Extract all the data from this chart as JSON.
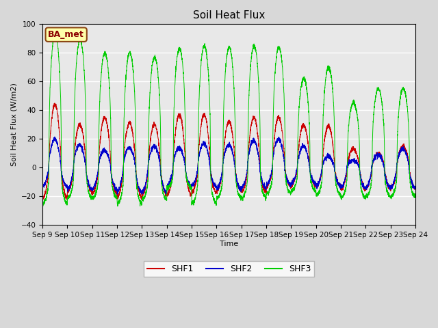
{
  "title": "Soil Heat Flux",
  "ylabel": "Soil Heat Flux (W/m2)",
  "xlabel": "Time",
  "station_label": "BA_met",
  "ylim": [
    -40,
    100
  ],
  "yticks": [
    -40,
    -20,
    0,
    20,
    40,
    60,
    80,
    100
  ],
  "legend": [
    "SHF1",
    "SHF2",
    "SHF3"
  ],
  "legend_colors": [
    "#cc0000",
    "#0000cc",
    "#00cc00"
  ],
  "background_color": "#d8d8d8",
  "plot_bg_color": "#e8e8e8",
  "n_days": 15,
  "start_day": 9,
  "shf1_peaks": [
    44,
    30,
    35,
    31,
    30,
    37,
    37,
    32,
    35,
    35,
    30,
    29,
    13,
    10,
    15
  ],
  "shf2_peaks": [
    20,
    16,
    12,
    14,
    15,
    14,
    17,
    16,
    19,
    20,
    15,
    8,
    5,
    9,
    13
  ],
  "shf3_peaks": [
    93,
    89,
    80,
    80,
    77,
    83,
    85,
    84,
    85,
    84,
    62,
    70,
    45,
    55,
    55
  ],
  "shf1_troughs": [
    -21,
    -17,
    -18,
    -21,
    -19,
    -19,
    -17,
    -16,
    -17,
    -13,
    -12,
    -13,
    -15,
    -14,
    -14
  ],
  "shf2_troughs": [
    -13,
    -15,
    -15,
    -17,
    -17,
    -13,
    -13,
    -15,
    -14,
    -12,
    -11,
    -13,
    -14,
    -14,
    -14
  ],
  "shf3_troughs": [
    -25,
    -21,
    -21,
    -25,
    -22,
    -14,
    -25,
    -21,
    -21,
    -18,
    -16,
    -19,
    -21,
    -20,
    -20
  ]
}
